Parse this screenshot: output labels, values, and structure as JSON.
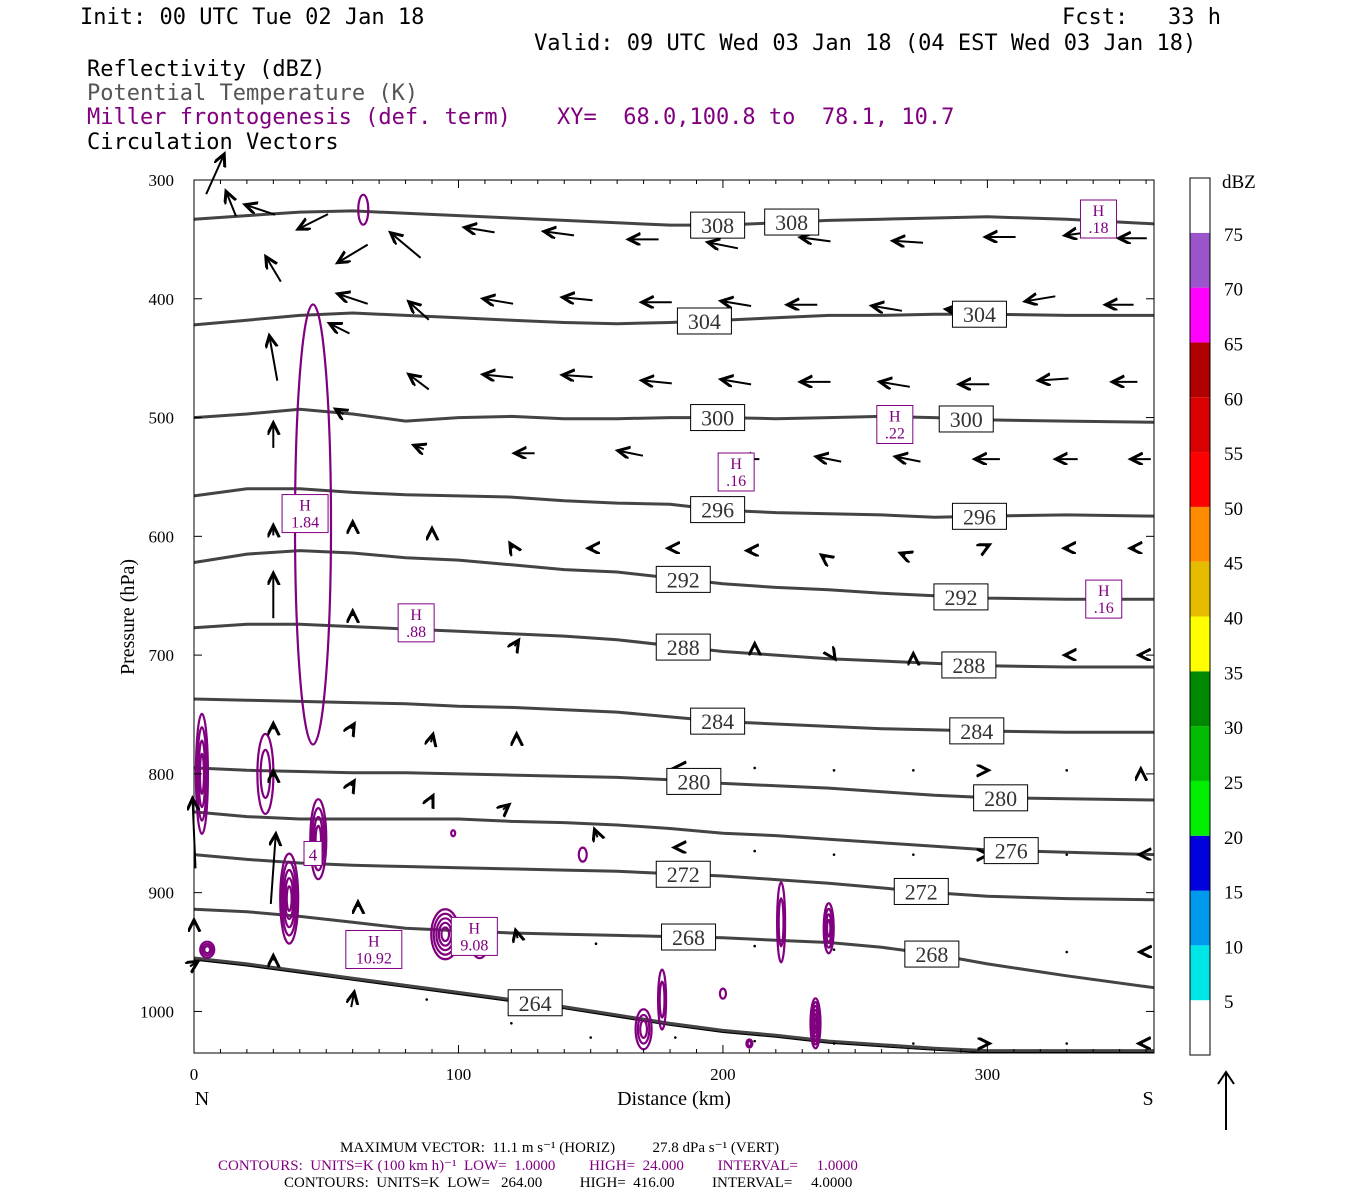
{
  "header": {
    "init": "Init: 00 UTC Tue 02 Jan 18",
    "fcst_label": "Fcst:",
    "fcst_value": "33 h",
    "valid": "Valid: 09 UTC Wed 03 Jan 18 (04 EST Wed 03 Jan 18)"
  },
  "fields": {
    "reflectivity": "Reflectivity (dBZ)",
    "theta": "Potential Temperature (K)",
    "frontogenesis": "Miller frontogenesis (def. term)",
    "xy": "XY=  68.0,100.8 to  78.1, 10.7",
    "vectors": "Circulation Vectors"
  },
  "colors": {
    "theta_contour": "#444444",
    "frontogenesis": "#800080",
    "vectors": "#000000"
  },
  "chart_data": {
    "type": "cross-section",
    "xlabel": "Distance (km)",
    "ylabel": "Pressure (hPa)",
    "xlim": [
      0,
      363
    ],
    "ylim": [
      1035,
      300
    ],
    "x_ticks": [
      0,
      100,
      200,
      300
    ],
    "y_ticks": [
      300,
      400,
      500,
      600,
      700,
      800,
      900,
      1000
    ],
    "left_end_label": "N",
    "right_end_label": "S",
    "theta_contours": [
      {
        "value": 308,
        "label": "308",
        "pressures": [
          333,
          330,
          327,
          326,
          328,
          330,
          332,
          334,
          336,
          338,
          338,
          336,
          334,
          333,
          332,
          331,
          333,
          337
        ]
      },
      {
        "value": 304,
        "label": "304",
        "pressures": [
          422,
          418,
          414,
          412,
          414,
          416,
          418,
          420,
          421,
          420,
          418,
          416,
          414,
          414,
          413,
          413,
          414,
          414
        ]
      },
      {
        "value": 300,
        "label": "300",
        "pressures": [
          500,
          497,
          493,
          497,
          503,
          500,
          499,
          501,
          501,
          500,
          500,
          501,
          500,
          499,
          500,
          502,
          503,
          504
        ]
      },
      {
        "value": 296,
        "label": "296",
        "pressures": [
          566,
          560,
          560,
          563,
          565,
          566,
          567,
          570,
          572,
          573,
          578,
          580,
          581,
          582,
          584,
          583,
          582,
          583
        ]
      },
      {
        "value": 292,
        "label": "292",
        "pressures": [
          622,
          615,
          612,
          614,
          618,
          620,
          624,
          628,
          630,
          635,
          640,
          643,
          645,
          648,
          650,
          652,
          653,
          653
        ]
      },
      {
        "value": 288,
        "label": "288",
        "pressures": [
          677,
          674,
          674,
          676,
          678,
          680,
          682,
          684,
          687,
          692,
          697,
          700,
          703,
          705,
          707,
          709,
          710,
          710
        ]
      },
      {
        "value": 284,
        "label": "284",
        "pressures": [
          737,
          738,
          739,
          740,
          741,
          743,
          744,
          746,
          748,
          752,
          756,
          758,
          760,
          762,
          763,
          764,
          765,
          765
        ]
      },
      {
        "value": 280,
        "label": "280",
        "pressures": [
          795,
          797,
          798,
          799,
          799,
          800,
          801,
          802,
          803,
          805,
          808,
          810,
          812,
          815,
          818,
          820,
          821,
          822
        ]
      },
      {
        "value": 276,
        "label": "276",
        "pressures": [
          832,
          836,
          838,
          838,
          838,
          838,
          840,
          841,
          843,
          846,
          850,
          852,
          855,
          858,
          861,
          864,
          866,
          868
        ]
      },
      {
        "value": 272,
        "label": "272",
        "pressures": [
          868,
          872,
          875,
          877,
          878,
          879,
          880,
          881,
          882,
          884,
          886,
          889,
          892,
          896,
          900,
          903,
          905,
          906
        ]
      },
      {
        "value": 268,
        "label": "268",
        "pressures": [
          914,
          916,
          920,
          925,
          930,
          932,
          934,
          935,
          936,
          937,
          938,
          940,
          942,
          946,
          952,
          960,
          970,
          980
        ]
      },
      {
        "value": 264,
        "label": "264",
        "pressures": [
          955,
          960,
          966,
          972,
          978,
          984,
          990,
          996,
          1003,
          1010,
          1016,
          1020,
          1025,
          1028,
          1031,
          1033,
          1033,
          1033
        ]
      }
    ],
    "theta_x": [
      0,
      20,
      40,
      60,
      80,
      100,
      120,
      140,
      160,
      180,
      200,
      220,
      240,
      260,
      280,
      300,
      330,
      363
    ],
    "theta_label_positions_km": {
      "308": [
        198,
        226
      ],
      "304": [
        193,
        297
      ],
      "300": [
        198,
        292
      ],
      "296": [
        198,
        297
      ],
      "292": [
        185,
        290
      ],
      "288": [
        185,
        293
      ],
      "284": [
        198,
        296
      ],
      "280": [
        189,
        305
      ],
      "276": [
        309
      ],
      "272": [
        185,
        275
      ],
      "268": [
        187,
        279
      ],
      "264": [
        129
      ]
    },
    "frontogenesis_maxima": [
      {
        "label_h": "H",
        "label_v": "1.84",
        "x_km": 42,
        "p": 580
      },
      {
        "label_h": "H",
        "label_v": ".88",
        "x_km": 84,
        "p": 672
      },
      {
        "label_h": "H",
        "label_v": "10.92",
        "x_km": 68,
        "p": 947
      },
      {
        "label_h": "H",
        "label_v": "9.08",
        "x_km": 106,
        "p": 936
      },
      {
        "label_h": "H",
        "label_v": ".16",
        "x_km": 205,
        "p": 545
      },
      {
        "label_h": "H",
        "label_v": ".22",
        "x_km": 265,
        "p": 505
      },
      {
        "label_h": "H",
        "label_v": ".18",
        "x_km": 342,
        "p": 332
      },
      {
        "label_h": "H",
        "label_v": ".16",
        "x_km": 344,
        "p": 652
      }
    ],
    "frontogenesis_contour_label": {
      "text": "4",
      "x_km": 45,
      "p": 867
    },
    "colorbar": {
      "label": "dBZ",
      "levels": [
        "5",
        "10",
        "15",
        "20",
        "25",
        "30",
        "35",
        "40",
        "45",
        "50",
        "55",
        "60",
        "65",
        "70",
        "75"
      ],
      "colors": [
        "#ffffff",
        "#00e5e5",
        "#0099ee",
        "#0000dd",
        "#00ee00",
        "#00bb00",
        "#008800",
        "#ffff00",
        "#e5bc00",
        "#ff8c00",
        "#ff0000",
        "#d80000",
        "#b00000",
        "#ff00ff",
        "#9955c9",
        "#ffffff"
      ]
    },
    "vectors": [
      {
        "x": 8,
        "p": 295,
        "u": 18,
        "v": -40
      },
      {
        "x": 14,
        "p": 320,
        "u": -10,
        "v": -25
      },
      {
        "x": 25,
        "p": 325,
        "u": -30,
        "v": -10
      },
      {
        "x": 45,
        "p": 335,
        "u": -30,
        "v": 15
      },
      {
        "x": 60,
        "p": 362,
        "u": -30,
        "v": 18
      },
      {
        "x": 80,
        "p": 355,
        "u": -30,
        "v": -25
      },
      {
        "x": 108,
        "p": 342,
        "u": -30,
        "v": -5
      },
      {
        "x": 138,
        "p": 345,
        "u": -30,
        "v": -4
      },
      {
        "x": 170,
        "p": 350,
        "u": -30,
        "v": 0
      },
      {
        "x": 200,
        "p": 355,
        "u": -30,
        "v": -6
      },
      {
        "x": 235,
        "p": 350,
        "u": -30,
        "v": -4
      },
      {
        "x": 270,
        "p": 352,
        "u": -30,
        "v": -2
      },
      {
        "x": 305,
        "p": 348,
        "u": -30,
        "v": 0
      },
      {
        "x": 335,
        "p": 345,
        "u": -30,
        "v": 4
      },
      {
        "x": 355,
        "p": 349,
        "u": -28,
        "v": 0
      },
      {
        "x": 30,
        "p": 375,
        "u": -15,
        "v": -25
      },
      {
        "x": 60,
        "p": 400,
        "u": -30,
        "v": -10
      },
      {
        "x": 85,
        "p": 410,
        "u": -20,
        "v": -18
      },
      {
        "x": 115,
        "p": 402,
        "u": -30,
        "v": -5
      },
      {
        "x": 145,
        "p": 400,
        "u": -30,
        "v": -3
      },
      {
        "x": 175,
        "p": 403,
        "u": -30,
        "v": 0
      },
      {
        "x": 205,
        "p": 404,
        "u": -30,
        "v": -5
      },
      {
        "x": 230,
        "p": 405,
        "u": -30,
        "v": 0
      },
      {
        "x": 262,
        "p": 408,
        "u": -30,
        "v": -5
      },
      {
        "x": 290,
        "p": 410,
        "u": -30,
        "v": -3
      },
      {
        "x": 320,
        "p": 400,
        "u": -30,
        "v": 5
      },
      {
        "x": 350,
        "p": 405,
        "u": -28,
        "v": 0
      },
      {
        "x": 55,
        "p": 425,
        "u": -20,
        "v": -10
      },
      {
        "x": 30,
        "p": 450,
        "u": -8,
        "v": -45
      },
      {
        "x": 85,
        "p": 470,
        "u": -20,
        "v": -15
      },
      {
        "x": 115,
        "p": 465,
        "u": -30,
        "v": -3
      },
      {
        "x": 145,
        "p": 465,
        "u": -30,
        "v": -2
      },
      {
        "x": 175,
        "p": 470,
        "u": -30,
        "v": -3
      },
      {
        "x": 205,
        "p": 470,
        "u": -30,
        "v": -5
      },
      {
        "x": 235,
        "p": 470,
        "u": -30,
        "v": 0
      },
      {
        "x": 265,
        "p": 472,
        "u": -30,
        "v": -5
      },
      {
        "x": 295,
        "p": 472,
        "u": -30,
        "v": 0
      },
      {
        "x": 325,
        "p": 468,
        "u": -30,
        "v": 2
      },
      {
        "x": 352,
        "p": 470,
        "u": -25,
        "v": 0
      },
      {
        "x": 55,
        "p": 495,
        "u": -8,
        "v": -5
      },
      {
        "x": 30,
        "p": 515,
        "u": 0,
        "v": -25
      },
      {
        "x": 85,
        "p": 525,
        "u": -10,
        "v": -4
      },
      {
        "x": 125,
        "p": 530,
        "u": -20,
        "v": 0
      },
      {
        "x": 165,
        "p": 530,
        "u": -25,
        "v": -5
      },
      {
        "x": 210,
        "p": 535,
        "u": -20,
        "v": 0
      },
      {
        "x": 240,
        "p": 535,
        "u": -25,
        "v": -5
      },
      {
        "x": 270,
        "p": 535,
        "u": -25,
        "v": -5
      },
      {
        "x": 300,
        "p": 535,
        "u": -25,
        "v": 0
      },
      {
        "x": 330,
        "p": 535,
        "u": -22,
        "v": 0
      },
      {
        "x": 358,
        "p": 535,
        "u": -20,
        "v": 0
      },
      {
        "x": 30,
        "p": 650,
        "u": 0,
        "v": -45
      },
      {
        "x": 30,
        "p": 595,
        "u": 0,
        "v": -10
      },
      {
        "x": 60,
        "p": 590,
        "u": 0,
        "v": -5
      },
      {
        "x": 90,
        "p": 595,
        "u": 0,
        "v": -4
      },
      {
        "x": 120,
        "p": 608,
        "u": -3,
        "v": -5
      },
      {
        "x": 150,
        "p": 610,
        "u": -5,
        "v": 0
      },
      {
        "x": 180,
        "p": 610,
        "u": -4,
        "v": 0
      },
      {
        "x": 210,
        "p": 612,
        "u": -5,
        "v": 0
      },
      {
        "x": 238,
        "p": 617,
        "u": -4,
        "v": -3
      },
      {
        "x": 268,
        "p": 615,
        "u": -5,
        "v": -2
      },
      {
        "x": 300,
        "p": 608,
        "u": 4,
        "v": -2
      },
      {
        "x": 330,
        "p": 610,
        "u": -5,
        "v": 0
      },
      {
        "x": 355,
        "p": 610,
        "u": -5,
        "v": 0
      },
      {
        "x": 60,
        "p": 665,
        "u": 0,
        "v": -5
      },
      {
        "x": 88,
        "p": 667,
        "u": 0,
        "v": -4
      },
      {
        "x": 122,
        "p": 690,
        "u": 4,
        "v": -6
      },
      {
        "x": 183,
        "p": 693,
        "u": -2,
        "v": 0
      },
      {
        "x": 212,
        "p": 692,
        "u": 0,
        "v": -4
      },
      {
        "x": 242,
        "p": 702,
        "u": 2,
        "v": 3
      },
      {
        "x": 272,
        "p": 700,
        "u": 0,
        "v": -3
      },
      {
        "x": 300,
        "p": 700,
        "u": 0,
        "v": 0
      },
      {
        "x": 330,
        "p": 700,
        "u": -4,
        "v": 0
      },
      {
        "x": 358,
        "p": 700,
        "u": -4,
        "v": 0
      },
      {
        "x": 30,
        "p": 760,
        "u": 0,
        "v": -6
      },
      {
        "x": 60,
        "p": 760,
        "u": 3,
        "v": -5
      },
      {
        "x": 90,
        "p": 770,
        "u": 2,
        "v": -8
      },
      {
        "x": 122,
        "p": 768,
        "u": 0,
        "v": -4
      },
      {
        "x": 182,
        "p": 795,
        "u": -2,
        "v": 0
      },
      {
        "x": 212,
        "p": 795,
        "u": 0,
        "v": 0
      },
      {
        "x": 242,
        "p": 797,
        "u": 0,
        "v": 0
      },
      {
        "x": 272,
        "p": 797,
        "u": 0,
        "v": 0
      },
      {
        "x": 300,
        "p": 797,
        "u": 2,
        "v": 0
      },
      {
        "x": 330,
        "p": 797,
        "u": 0,
        "v": 0
      },
      {
        "x": 358,
        "p": 797,
        "u": 0,
        "v": -3
      },
      {
        "x": 30,
        "p": 800,
        "u": 0,
        "v": -6
      },
      {
        "x": 60,
        "p": 808,
        "u": 3,
        "v": -5
      },
      {
        "x": 90,
        "p": 820,
        "u": 2,
        "v": -4
      },
      {
        "x": 118,
        "p": 828,
        "u": 6,
        "v": -5
      },
      {
        "x": 152,
        "p": 850,
        "u": -3,
        "v": -8
      },
      {
        "x": 182,
        "p": 862,
        "u": -2,
        "v": 0
      },
      {
        "x": 212,
        "p": 865,
        "u": 0,
        "v": 0
      },
      {
        "x": 242,
        "p": 868,
        "u": 0,
        "v": 0
      },
      {
        "x": 272,
        "p": 868,
        "u": 0,
        "v": 0
      },
      {
        "x": 300,
        "p": 868,
        "u": 2,
        "v": 0
      },
      {
        "x": 330,
        "p": 868,
        "u": 0,
        "v": 0
      },
      {
        "x": 358,
        "p": 868,
        "u": -3,
        "v": 0
      },
      {
        "x": 0,
        "p": 850,
        "u": -3,
        "v": -70
      },
      {
        "x": 30,
        "p": 880,
        "u": 5,
        "v": -70
      },
      {
        "x": 0,
        "p": 925,
        "u": 0,
        "v": -5
      },
      {
        "x": 62,
        "p": 910,
        "u": 0,
        "v": -5
      },
      {
        "x": 122,
        "p": 935,
        "u": -2,
        "v": -8
      },
      {
        "x": 152,
        "p": 943,
        "u": 0,
        "v": 0
      },
      {
        "x": 182,
        "p": 945,
        "u": 0,
        "v": 0
      },
      {
        "x": 212,
        "p": 945,
        "u": 0,
        "v": 0
      },
      {
        "x": 242,
        "p": 948,
        "u": 0,
        "v": 0
      },
      {
        "x": 330,
        "p": 950,
        "u": 0,
        "v": 0
      },
      {
        "x": 358,
        "p": 950,
        "u": -2,
        "v": 0
      },
      {
        "x": 0,
        "p": 960,
        "u": 8,
        "v": -5
      },
      {
        "x": 30,
        "p": 955,
        "u": 0,
        "v": -5
      },
      {
        "x": 60,
        "p": 990,
        "u": 3,
        "v": -15
      },
      {
        "x": 88,
        "p": 990,
        "u": 0,
        "v": 0
      },
      {
        "x": 120,
        "p": 1010,
        "u": 0,
        "v": 0
      },
      {
        "x": 150,
        "p": 1022,
        "u": 0,
        "v": 0
      },
      {
        "x": 182,
        "p": 1022,
        "u": 0,
        "v": 0
      },
      {
        "x": 212,
        "p": 1025,
        "u": 0,
        "v": 0
      },
      {
        "x": 242,
        "p": 1027,
        "u": 0,
        "v": 0
      },
      {
        "x": 272,
        "p": 1027,
        "u": 0,
        "v": 0
      },
      {
        "x": 300,
        "p": 1027,
        "u": 4,
        "v": 0
      },
      {
        "x": 330,
        "p": 1027,
        "u": 0,
        "v": 0
      },
      {
        "x": 358,
        "p": 1027,
        "u": -4,
        "v": 0
      }
    ]
  },
  "footer": {
    "max_vector": "MAXIMUM VECTOR:  11.1 m s⁻¹ (HORIZ)          27.8 dPa s⁻¹ (VERT)",
    "contours_fronto": "CONTOURS:  UNITS=K (100 km h)⁻¹  LOW=  1.0000         HIGH=  24.000         INTERVAL=     1.0000",
    "contours_theta": "CONTOURS:  UNITS=K  LOW=   264.00          HIGH=  416.00          INTERVAL=     4.0000"
  }
}
